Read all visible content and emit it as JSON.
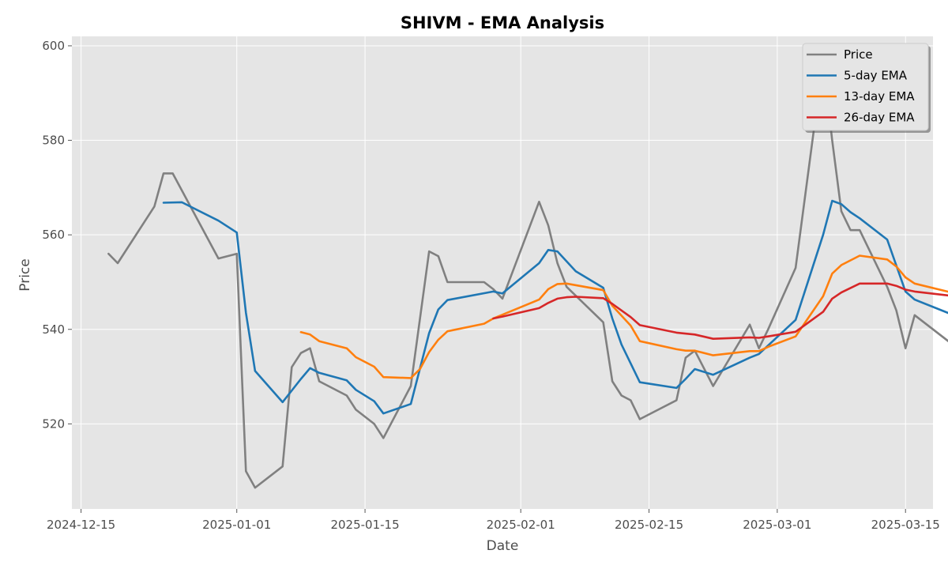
{
  "chart_data": {
    "type": "line",
    "title": "SHIVM - EMA Analysis",
    "xlabel": "Date",
    "ylabel": "Price",
    "x_axis_type": "date",
    "xlim": [
      "2024-12-14",
      "2025-03-18"
    ],
    "ylim": [
      502,
      602
    ],
    "x_ticks": [
      "2024-12-15",
      "2025-01-01",
      "2025-01-15",
      "2025-02-01",
      "2025-02-15",
      "2025-03-01",
      "2025-03-15"
    ],
    "y_ticks": [
      520,
      540,
      560,
      580,
      600
    ],
    "grid": true,
    "legend_position": "top-right",
    "series": [
      {
        "name": "Price",
        "color": "#808080",
        "points": [
          [
            "2024-12-18",
            556
          ],
          [
            "2024-12-19",
            554
          ],
          [
            "2024-12-23",
            566
          ],
          [
            "2024-12-24",
            573
          ],
          [
            "2024-12-25",
            573
          ],
          [
            "2024-12-30",
            555
          ],
          [
            "2024-12-31",
            555.5
          ],
          [
            "2025-01-01",
            556
          ],
          [
            "2025-01-02",
            510
          ],
          [
            "2025-01-03",
            506.5
          ],
          [
            "2025-01-06",
            511
          ],
          [
            "2025-01-07",
            532
          ],
          [
            "2025-01-08",
            535
          ],
          [
            "2025-01-09",
            536
          ],
          [
            "2025-01-10",
            529
          ],
          [
            "2025-01-13",
            526
          ],
          [
            "2025-01-14",
            523
          ],
          [
            "2025-01-16",
            520
          ],
          [
            "2025-01-17",
            517
          ],
          [
            "2025-01-20",
            528
          ],
          [
            "2025-01-22",
            556.5
          ],
          [
            "2025-01-23",
            555.5
          ],
          [
            "2025-01-24",
            550
          ],
          [
            "2025-01-27",
            550
          ],
          [
            "2025-01-28",
            550
          ],
          [
            "2025-01-29",
            548.5
          ],
          [
            "2025-01-30",
            546.5
          ],
          [
            "2025-02-03",
            567
          ],
          [
            "2025-02-04",
            562
          ],
          [
            "2025-02-05",
            554
          ],
          [
            "2025-02-06",
            549
          ],
          [
            "2025-02-10",
            541.5
          ],
          [
            "2025-02-11",
            529
          ],
          [
            "2025-02-12",
            526
          ],
          [
            "2025-02-13",
            525
          ],
          [
            "2025-02-14",
            521
          ],
          [
            "2025-02-18",
            525
          ],
          [
            "2025-02-19",
            534
          ],
          [
            "2025-02-20",
            535.5
          ],
          [
            "2025-02-22",
            528
          ],
          [
            "2025-02-26",
            541
          ],
          [
            "2025-02-27",
            536
          ],
          [
            "2025-02-28",
            540
          ],
          [
            "2025-03-03",
            553
          ],
          [
            "2025-03-06",
            597
          ],
          [
            "2025-03-07",
            580
          ],
          [
            "2025-03-08",
            565
          ],
          [
            "2025-03-09",
            561
          ],
          [
            "2025-03-10",
            561
          ],
          [
            "2025-03-13",
            549
          ],
          [
            "2025-03-14",
            544
          ],
          [
            "2025-03-15",
            536
          ],
          [
            "2025-03-16",
            543
          ],
          [
            "2025-03-20",
            537
          ]
        ]
      },
      {
        "name": "5-day EMA",
        "color": "#1f77b4",
        "points": [
          [
            "2024-12-24",
            566.8
          ],
          [
            "2024-12-26",
            566.9
          ],
          [
            "2024-12-30",
            563
          ],
          [
            "2025-01-01",
            560.5
          ],
          [
            "2025-01-02",
            543.5
          ],
          [
            "2025-01-03",
            531.2
          ],
          [
            "2025-01-06",
            524.6
          ],
          [
            "2025-01-08",
            529.5
          ],
          [
            "2025-01-09",
            531.8
          ],
          [
            "2025-01-10",
            530.8
          ],
          [
            "2025-01-13",
            529.2
          ],
          [
            "2025-01-14",
            527.2
          ],
          [
            "2025-01-16",
            524.8
          ],
          [
            "2025-01-17",
            522.2
          ],
          [
            "2025-01-20",
            524.2
          ],
          [
            "2025-01-22",
            539.2
          ],
          [
            "2025-01-23",
            544.2
          ],
          [
            "2025-01-24",
            546.2
          ],
          [
            "2025-01-29",
            548
          ],
          [
            "2025-01-30",
            547.6
          ],
          [
            "2025-02-03",
            554
          ],
          [
            "2025-02-04",
            556.8
          ],
          [
            "2025-02-05",
            556.5
          ],
          [
            "2025-02-07",
            552.3
          ],
          [
            "2025-02-10",
            548.8
          ],
          [
            "2025-02-11",
            542.3
          ],
          [
            "2025-02-12",
            536.8
          ],
          [
            "2025-02-14",
            528.8
          ],
          [
            "2025-02-18",
            527.6
          ],
          [
            "2025-02-19",
            529.5
          ],
          [
            "2025-02-20",
            531.6
          ],
          [
            "2025-02-22",
            530.4
          ],
          [
            "2025-02-26",
            534
          ],
          [
            "2025-02-27",
            534.8
          ],
          [
            "2025-03-03",
            542
          ],
          [
            "2025-03-06",
            560
          ],
          [
            "2025-03-07",
            567.2
          ],
          [
            "2025-03-08",
            566.5
          ],
          [
            "2025-03-09",
            564.8
          ],
          [
            "2025-03-10",
            563.5
          ],
          [
            "2025-03-13",
            559
          ],
          [
            "2025-03-14",
            553.5
          ],
          [
            "2025-03-15",
            548
          ],
          [
            "2025-03-16",
            546.3
          ],
          [
            "2025-03-20",
            543.2
          ]
        ]
      },
      {
        "name": "13-day EMA",
        "color": "#ff7f0e",
        "points": [
          [
            "2025-01-08",
            539.4
          ],
          [
            "2025-01-09",
            538.9
          ],
          [
            "2025-01-10",
            537.5
          ],
          [
            "2025-01-13",
            536
          ],
          [
            "2025-01-14",
            534.1
          ],
          [
            "2025-01-16",
            532.1
          ],
          [
            "2025-01-17",
            529.9
          ],
          [
            "2025-01-20",
            529.7
          ],
          [
            "2025-01-21",
            531.6
          ],
          [
            "2025-01-22",
            535.2
          ],
          [
            "2025-01-23",
            537.8
          ],
          [
            "2025-01-24",
            539.6
          ],
          [
            "2025-01-28",
            541.2
          ],
          [
            "2025-01-29",
            542.3
          ],
          [
            "2025-02-03",
            546.3
          ],
          [
            "2025-02-04",
            548.5
          ],
          [
            "2025-02-05",
            549.6
          ],
          [
            "2025-02-06",
            549.7
          ],
          [
            "2025-02-10",
            548.3
          ],
          [
            "2025-02-11",
            545
          ],
          [
            "2025-02-13",
            540.8
          ],
          [
            "2025-02-14",
            537.5
          ],
          [
            "2025-02-18",
            535.8
          ],
          [
            "2025-02-19",
            535.5
          ],
          [
            "2025-02-20",
            535.5
          ],
          [
            "2025-02-22",
            534.5
          ],
          [
            "2025-02-26",
            535.4
          ],
          [
            "2025-02-27",
            535.4
          ],
          [
            "2025-02-28",
            536.3
          ],
          [
            "2025-03-03",
            538.5
          ],
          [
            "2025-03-06",
            547
          ],
          [
            "2025-03-07",
            551.8
          ],
          [
            "2025-03-08",
            553.6
          ],
          [
            "2025-03-10",
            555.6
          ],
          [
            "2025-03-13",
            554.8
          ],
          [
            "2025-03-14",
            553.3
          ],
          [
            "2025-03-15",
            551
          ],
          [
            "2025-03-16",
            549.7
          ],
          [
            "2025-03-20",
            547.8
          ]
        ]
      },
      {
        "name": "26-day EMA",
        "color": "#d62728",
        "points": [
          [
            "2025-01-29",
            542.3
          ],
          [
            "2025-01-30",
            542.7
          ],
          [
            "2025-02-03",
            544.5
          ],
          [
            "2025-02-04",
            545.6
          ],
          [
            "2025-02-05",
            546.5
          ],
          [
            "2025-02-06",
            546.8
          ],
          [
            "2025-02-07",
            546.9
          ],
          [
            "2025-02-10",
            546.6
          ],
          [
            "2025-02-11",
            545.4
          ],
          [
            "2025-02-13",
            542.6
          ],
          [
            "2025-02-14",
            540.9
          ],
          [
            "2025-02-18",
            539.3
          ],
          [
            "2025-02-20",
            538.9
          ],
          [
            "2025-02-22",
            538
          ],
          [
            "2025-02-26",
            538.3
          ],
          [
            "2025-02-27",
            538.2
          ],
          [
            "2025-02-28",
            538.5
          ],
          [
            "2025-03-03",
            539.5
          ],
          [
            "2025-03-06",
            543.7
          ],
          [
            "2025-03-07",
            546.5
          ],
          [
            "2025-03-08",
            547.8
          ],
          [
            "2025-03-10",
            549.7
          ],
          [
            "2025-03-13",
            549.7
          ],
          [
            "2025-03-14",
            549.2
          ],
          [
            "2025-03-15",
            548.4
          ],
          [
            "2025-03-16",
            548
          ],
          [
            "2025-03-20",
            547.1
          ]
        ]
      }
    ]
  }
}
